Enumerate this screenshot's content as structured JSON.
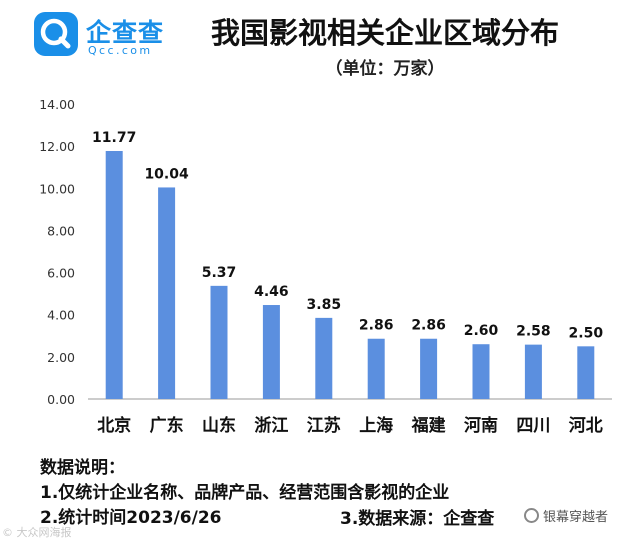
{
  "logo": {
    "name": "企查查",
    "sub": "Qcc.com"
  },
  "header": {
    "title": "我国影视相关企业区域分布",
    "subtitle": "（单位：万家）"
  },
  "chart_data": {
    "type": "bar",
    "title": "我国影视相关企业区域分布",
    "subtitle": "（单位：万家）",
    "categories": [
      "北京",
      "广东",
      "山东",
      "浙江",
      "江苏",
      "上海",
      "福建",
      "河南",
      "四川",
      "河北"
    ],
    "values": [
      11.77,
      10.04,
      5.37,
      4.46,
      3.85,
      2.86,
      2.86,
      2.6,
      2.58,
      2.5
    ],
    "value_labels": [
      "11.77",
      "10.04",
      "5.37",
      "4.46",
      "3.85",
      "2.86",
      "2.86",
      "2.60",
      "2.58",
      "2.50"
    ],
    "yticks": [
      "0.00",
      "2.00",
      "4.00",
      "6.00",
      "8.00",
      "10.00",
      "12.00",
      "14.00"
    ],
    "ylim": [
      0,
      14
    ],
    "xlabel": "",
    "ylabel": "",
    "grid": false,
    "bar_color": "#5b8fdf"
  },
  "notes": {
    "heading": "数据说明：",
    "line1": "1.仅统计企业名称、品牌产品、经营范围含影视的企业",
    "line2": "2.统计时间2023/6/26",
    "line3": "3.数据来源：企查查"
  },
  "watermarks": {
    "left": "© 大众网海报",
    "right": "银幕穿越者"
  }
}
